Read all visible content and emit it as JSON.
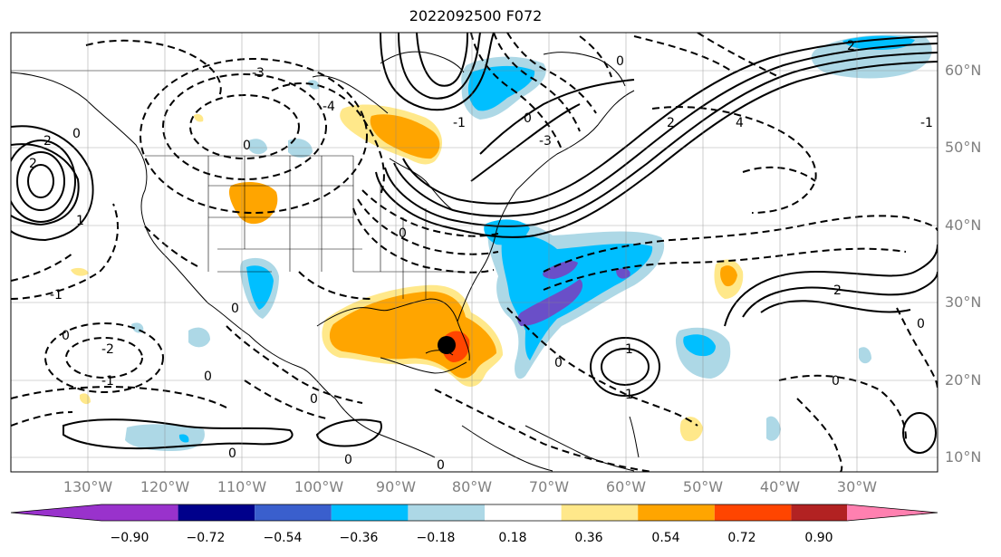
{
  "title": "2022092500 F072",
  "lat_labels": [
    "60°N",
    "50°N",
    "40°N",
    "30°N",
    "20°N",
    "10°N"
  ],
  "lon_labels": [
    "130°W",
    "120°W",
    "110°W",
    "100°W",
    "90°W",
    "80°W",
    "70°W",
    "60°W",
    "50°W",
    "40°W",
    "30°W"
  ],
  "colorbar": {
    "ticks": [
      "−0.90",
      "−0.72",
      "−0.54",
      "−0.36",
      "−0.18",
      "0.18",
      "0.36",
      "0.54",
      "0.72",
      "0.90"
    ],
    "colors": [
      "#9932cc",
      "#00008b",
      "#3a5fcd",
      "#00bfff",
      "#add8e6",
      "#ffffff",
      "#ffe88a",
      "#ffa500",
      "#ff4500",
      "#b22222",
      "#ff80b0"
    ]
  },
  "contour_labels": [
    {
      "text": "0"
    },
    {
      "text": "1"
    },
    {
      "text": "2"
    },
    {
      "text": "-1"
    },
    {
      "text": "-2"
    },
    {
      "text": "-3"
    },
    {
      "text": "4"
    },
    {
      "text": "-4"
    }
  ],
  "storm_marker": {
    "name": "storm-center",
    "color": "#000000"
  }
}
